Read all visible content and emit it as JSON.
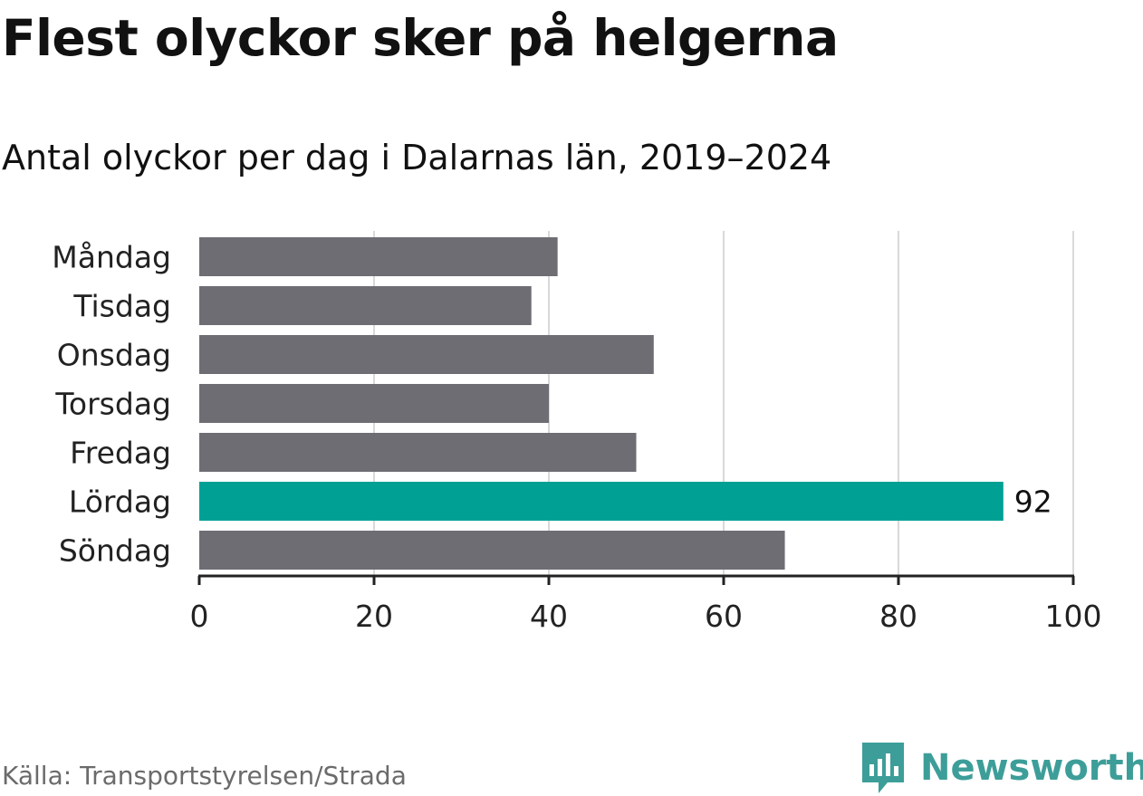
{
  "title": "Flest olyckor sker på helgerna",
  "subtitle": "Antal olyckor per dag i Dalarnas län, 2019–2024",
  "source": "Källa: Transportstyrelsen/Strada",
  "brand": {
    "name": "Newsworthy",
    "icon": "newsworthy-logo-icon",
    "color": "#3d9e99"
  },
  "colors": {
    "bar": "#6e6d74",
    "highlight": "#00a095",
    "grid": "#d9d9d9",
    "axis": "#222222"
  },
  "chart_data": {
    "type": "bar",
    "orientation": "horizontal",
    "title": "Flest olyckor sker på helgerna",
    "subtitle": "Antal olyckor per dag i Dalarnas län, 2019–2024",
    "categories": [
      "Måndag",
      "Tisdag",
      "Onsdag",
      "Torsdag",
      "Fredag",
      "Lördag",
      "Söndag"
    ],
    "values": [
      41,
      38,
      52,
      40,
      50,
      92,
      67
    ],
    "highlight_index": 5,
    "data_labels": [
      {
        "index": 5,
        "text": "92"
      }
    ],
    "xlim": [
      0,
      100
    ],
    "xticks": [
      0,
      20,
      40,
      60,
      80,
      100
    ],
    "xtick_labels": [
      "0",
      "20",
      "40",
      "60",
      "80",
      "100"
    ],
    "xlabel": "",
    "ylabel": "",
    "grid": true,
    "legend": "none"
  }
}
